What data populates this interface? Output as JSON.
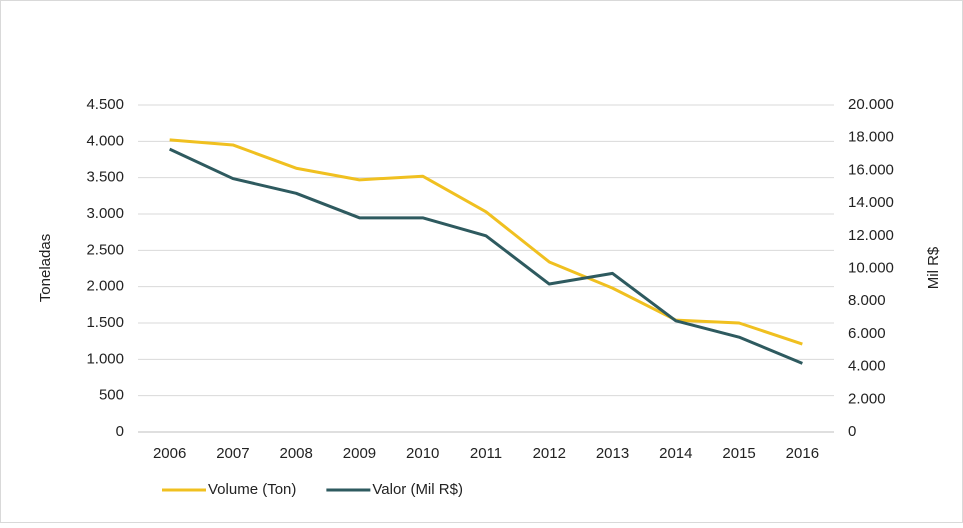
{
  "chart_data": {
    "type": "line",
    "categories": [
      "2006",
      "2007",
      "2008",
      "2009",
      "2010",
      "2011",
      "2012",
      "2013",
      "2014",
      "2015",
      "2016"
    ],
    "series": [
      {
        "name": "Volume (Ton)",
        "color": "#f0c020",
        "values": [
          4020,
          3950,
          3630,
          3470,
          3520,
          3030,
          2340,
          1980,
          1540,
          1500,
          1210
        ]
      },
      {
        "name": "Valor (Mil R$)",
        "color": "#2e5a5f",
        "axis": "y2",
        "values": [
          17300,
          15500,
          14600,
          13100,
          13100,
          12000,
          9050,
          9700,
          6800,
          5800,
          4200
        ]
      }
    ],
    "ylabel": "Toneladas",
    "y2label": "Mil R$",
    "ylim": [
      0,
      4500
    ],
    "yticks": [
      0,
      500,
      {
        "value": 1000,
        "label": "1.000"
      },
      {
        "value": 1500,
        "label": "1.500"
      },
      {
        "value": 2000,
        "label": "2.000"
      },
      {
        "value": 2500,
        "label": "2.500"
      },
      {
        "value": 3000,
        "label": "3.000"
      },
      {
        "value": 3500,
        "label": "3.500"
      },
      {
        "value": 4000,
        "label": "4.000"
      },
      {
        "value": 4500,
        "label": "4.500"
      }
    ],
    "y2lim": [
      0,
      20000
    ],
    "y2ticks": [
      0,
      {
        "value": 2000,
        "label": "2.000"
      },
      {
        "value": 4000,
        "label": "4.000"
      },
      {
        "value": 6000,
        "label": "6.000"
      },
      {
        "value": 8000,
        "label": "8.000"
      },
      {
        "value": 10000,
        "label": "10.000"
      },
      {
        "value": 12000,
        "label": "12.000"
      },
      {
        "value": 14000,
        "label": "14.000"
      },
      {
        "value": 16000,
        "label": "16.000"
      },
      {
        "value": 18000,
        "label": "18.000"
      },
      {
        "value": 20000,
        "label": "20.000"
      }
    ],
    "grid": true,
    "legend": "bottom"
  }
}
